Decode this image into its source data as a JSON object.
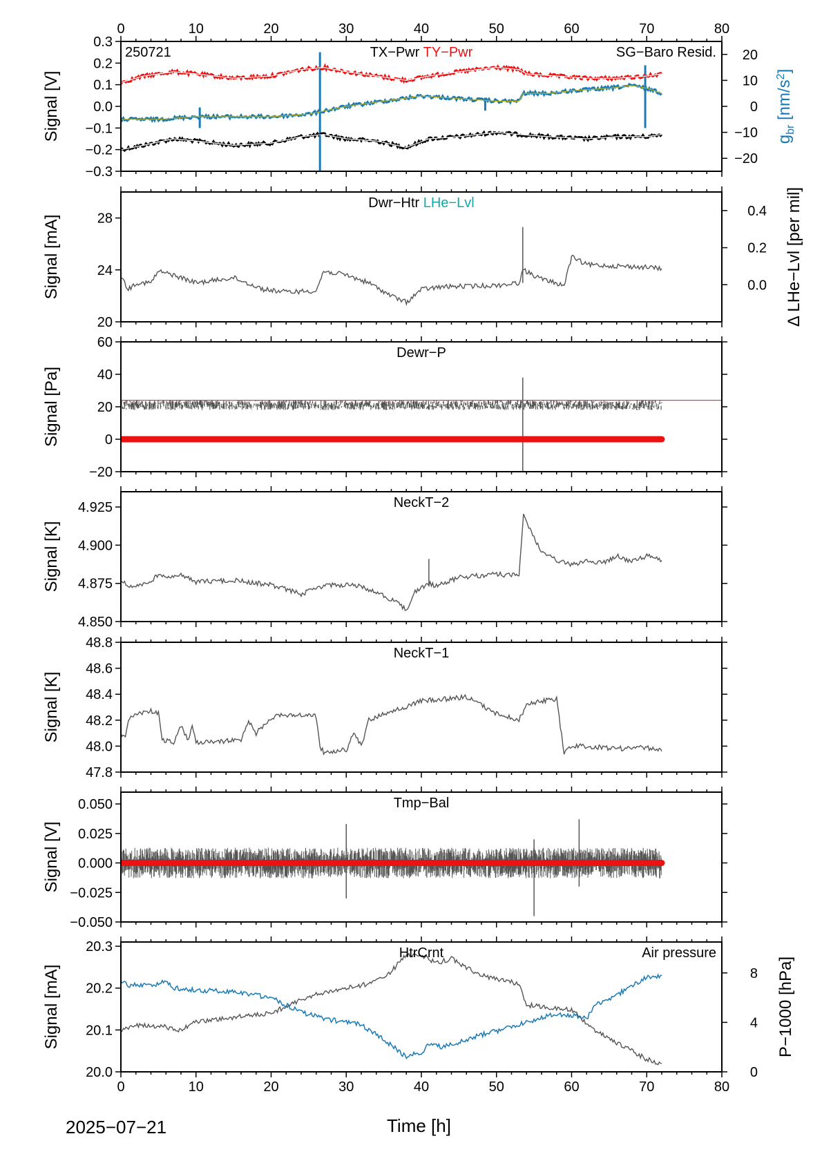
{
  "colors": {
    "black": "#000000",
    "gray": "#555555",
    "red": "#ee1111",
    "blue": "#1a7ab5",
    "teal": "#16a8a8",
    "olive": "#b5b52a"
  },
  "footer": {
    "date": "2025−07−21",
    "xlabel": "Time [h]"
  },
  "chart_data": [
    {
      "type": "line",
      "id": "pwr",
      "xlim": [
        0,
        80
      ],
      "xticks": [
        0,
        10,
        20,
        30,
        40,
        50,
        60,
        70,
        80
      ],
      "ylim": [
        -0.3,
        0.3
      ],
      "yticks": [
        -0.3,
        -0.2,
        -0.1,
        0.0,
        0.1,
        0.2,
        0.3
      ],
      "ytick_labels": [
        "−0.3",
        "−0.2",
        "−0.1",
        "0.0",
        "0.1",
        "0.2",
        "0.3"
      ],
      "ylabel": "Signal [V]",
      "top_xtick_labels": [
        "0",
        "10",
        "20",
        "30",
        "40",
        "50",
        "60",
        "70",
        "80"
      ],
      "annotation": "250721",
      "title_parts": [
        {
          "text": "TX−Pwr",
          "color": "black"
        },
        {
          "text": "TY−Pwr",
          "color": "red"
        }
      ],
      "right_legend": "SG−Baro Resid.",
      "right_axis": {
        "ylim": [
          -25,
          25
        ],
        "yticks": [
          -20,
          -10,
          0,
          10,
          20
        ],
        "ytick_labels": [
          "−20",
          "−10",
          "0",
          "10",
          "20"
        ],
        "label_main": "g",
        "label_sub": "br",
        "label_rest": " [nm/s",
        "label_sup": "2",
        "label_end": "]"
      },
      "series": [
        {
          "name": "TX−Pwr",
          "color": "black",
          "x": [
            0,
            3,
            7,
            10,
            15,
            20,
            24,
            27,
            30,
            34,
            38,
            41,
            45,
            50,
            53,
            57,
            62,
            66,
            70,
            72
          ],
          "y": [
            -0.2,
            -0.18,
            -0.15,
            -0.16,
            -0.18,
            -0.17,
            -0.14,
            -0.13,
            -0.15,
            -0.16,
            -0.19,
            -0.15,
            -0.14,
            -0.12,
            -0.13,
            -0.14,
            -0.15,
            -0.14,
            -0.14,
            -0.13
          ]
        },
        {
          "name": "TY−Pwr",
          "color": "red",
          "x": [
            0,
            3,
            7,
            10,
            15,
            20,
            24,
            27,
            30,
            34,
            38,
            41,
            45,
            50,
            53,
            54,
            58,
            62,
            66,
            70,
            72
          ],
          "y": [
            0.11,
            0.14,
            0.16,
            0.15,
            0.13,
            0.14,
            0.17,
            0.18,
            0.16,
            0.14,
            0.12,
            0.14,
            0.16,
            0.18,
            0.17,
            0.15,
            0.14,
            0.13,
            0.13,
            0.14,
            0.15
          ]
        },
        {
          "name": "SG−Baro Resid.",
          "color": "blue",
          "axis": "right",
          "x": [
            0,
            5,
            10,
            15,
            20,
            25,
            30,
            35,
            40,
            45,
            50,
            53,
            53.5,
            57,
            60,
            65,
            68,
            70,
            72
          ],
          "y": [
            -5,
            -5,
            -4,
            -4,
            -4,
            -3,
            0,
            2,
            4,
            3,
            2,
            2,
            5,
            5,
            6,
            7,
            8,
            7,
            5
          ]
        }
      ],
      "spikes": [
        {
          "x": 26.5,
          "ymin": -0.3,
          "ymax": 0.25
        },
        {
          "x": 10.5,
          "ymin": -0.1,
          "ymax": -0.005
        },
        {
          "x": 48.5,
          "ymin": -0.02,
          "ymax": 0.04
        },
        {
          "x": 69.8,
          "ymin": -0.1,
          "ymax": 0.19
        }
      ]
    },
    {
      "type": "line",
      "id": "dwr",
      "xlim": [
        0,
        80
      ],
      "ylim": [
        20,
        30
      ],
      "yticks": [
        20,
        24,
        28
      ],
      "ytick_labels": [
        "20",
        "24",
        "28"
      ],
      "ylabel": "Signal [mA]",
      "title_parts": [
        {
          "text": "Dwr−Htr",
          "color": "black"
        },
        {
          "text": "LHe−Lvl",
          "color": "teal"
        }
      ],
      "right_axis": {
        "ylim": [
          -0.2,
          0.5
        ],
        "yticks": [
          0.0,
          0.2,
          0.4
        ],
        "ytick_labels": [
          "0.0",
          "0.2",
          "0.4"
        ],
        "label": "Δ LHe−Lvl [per mil]"
      },
      "series": [
        {
          "name": "Dwr−Htr",
          "color": "gray",
          "x": [
            0,
            1,
            2,
            4,
            5,
            7,
            10,
            15,
            19,
            22,
            26,
            27,
            30,
            33,
            36,
            38,
            40,
            43,
            50,
            53,
            53.5,
            56,
            59,
            60,
            62,
            66,
            70,
            72
          ],
          "y": [
            23.5,
            22.5,
            23.0,
            23.0,
            23.9,
            23.6,
            23.0,
            23.4,
            22.5,
            22.3,
            22.4,
            23.9,
            23.6,
            23.0,
            22.0,
            21.5,
            22.5,
            22.7,
            22.8,
            23.0,
            24.0,
            23.3,
            22.8,
            25.0,
            24.4,
            24.3,
            24.2,
            24.1
          ]
        }
      ],
      "spikes": [
        {
          "x": 53.5,
          "ymin": 23.0,
          "ymax": 27.3
        }
      ]
    },
    {
      "type": "line",
      "id": "dewr",
      "xlim": [
        0,
        80
      ],
      "ylim": [
        -20,
        60
      ],
      "yticks": [
        -20,
        0,
        20,
        40,
        60
      ],
      "ytick_labels": [
        "−20",
        "0",
        "20",
        "40",
        "60"
      ],
      "ylabel": "Signal [Pa]",
      "title_parts": [
        {
          "text": "Dewr−P",
          "color": "black"
        }
      ],
      "reference_line": 24,
      "zero_band": {
        "x0": 0,
        "x1": 72,
        "y": 0
      },
      "series": [
        {
          "name": "Dewr−P",
          "color": "gray",
          "x": [
            0,
            72
          ],
          "y": [
            21,
            21
          ]
        }
      ],
      "spikes": [
        {
          "x": 53.5,
          "ymin": -20,
          "ymax": 38
        }
      ]
    },
    {
      "type": "line",
      "id": "neck2",
      "xlim": [
        0,
        80
      ],
      "ylim": [
        4.85,
        4.935
      ],
      "yticks": [
        4.85,
        4.875,
        4.9,
        4.925
      ],
      "ytick_labels": [
        "4.850",
        "4.875",
        "4.900",
        "4.925"
      ],
      "ylabel": "Signal [K]",
      "title_parts": [
        {
          "text": "NeckT−2",
          "color": "black"
        }
      ],
      "series": [
        {
          "name": "NeckT−2",
          "color": "gray",
          "x": [
            0,
            1,
            3,
            5,
            8,
            10,
            15,
            20,
            24,
            26,
            28,
            31,
            33,
            35,
            37,
            38,
            39,
            41,
            42,
            45,
            50,
            53,
            53.6,
            55,
            56,
            58,
            60,
            62,
            64,
            66,
            68,
            70,
            72
          ],
          "y": [
            4.877,
            4.873,
            4.874,
            4.88,
            4.88,
            4.876,
            4.877,
            4.874,
            4.868,
            4.872,
            4.874,
            4.874,
            4.871,
            4.867,
            4.862,
            4.857,
            4.869,
            4.875,
            4.873,
            4.879,
            4.881,
            4.88,
            4.92,
            4.905,
            4.895,
            4.89,
            4.887,
            4.89,
            4.888,
            4.893,
            4.889,
            4.893,
            4.89
          ]
        }
      ],
      "spikes": [
        {
          "x": 41,
          "ymin": 4.873,
          "ymax": 4.891
        }
      ]
    },
    {
      "type": "line",
      "id": "neck1",
      "xlim": [
        0,
        80
      ],
      "ylim": [
        47.8,
        48.8
      ],
      "yticks": [
        47.8,
        48.0,
        48.2,
        48.4,
        48.6,
        48.8
      ],
      "ytick_labels": [
        "47.8",
        "48.0",
        "48.2",
        "48.4",
        "48.6",
        "48.8"
      ],
      "ylabel": "Signal [K]",
      "title_parts": [
        {
          "text": "NeckT−1",
          "color": "black"
        }
      ],
      "series": [
        {
          "name": "NeckT−1",
          "color": "gray",
          "x": [
            0,
            0.6,
            1,
            2,
            4,
            5,
            5.5,
            7,
            8,
            9,
            9.5,
            10,
            12,
            16,
            17,
            18,
            20,
            22,
            24,
            26,
            26.5,
            27,
            29,
            30,
            31,
            32,
            33,
            35,
            38,
            40,
            43,
            46,
            50,
            53,
            54,
            56,
            58,
            59,
            60,
            62,
            66,
            70,
            72
          ],
          "y": [
            48.1,
            48.06,
            48.2,
            48.25,
            48.27,
            48.25,
            48.05,
            48.03,
            48.15,
            48.05,
            48.15,
            48.03,
            48.03,
            48.05,
            48.2,
            48.1,
            48.22,
            48.24,
            48.24,
            48.23,
            48.0,
            47.95,
            47.97,
            47.97,
            48.1,
            48.0,
            48.2,
            48.25,
            48.3,
            48.35,
            48.36,
            48.38,
            48.25,
            48.2,
            48.32,
            48.35,
            48.36,
            47.95,
            48.0,
            48.0,
            47.98,
            47.99,
            47.96
          ]
        }
      ]
    },
    {
      "type": "line",
      "id": "tmp",
      "xlim": [
        0,
        80
      ],
      "ylim": [
        -0.05,
        0.06
      ],
      "yticks": [
        -0.05,
        -0.025,
        0.0,
        0.025,
        0.05
      ],
      "ytick_labels": [
        "−0.050",
        "−0.025",
        "0.000",
        "0.025",
        "0.050"
      ],
      "ylabel": "Signal [V]",
      "title_parts": [
        {
          "text": "Tmp−Bal",
          "color": "black"
        }
      ],
      "noise_band": {
        "x0": 0,
        "x1": 72,
        "lo": -0.013,
        "hi": 0.013
      },
      "zero_band": {
        "x0": 0,
        "x1": 72,
        "y": 0
      },
      "series": [],
      "spikes": [
        {
          "x": 55,
          "ymin": -0.045,
          "ymax": 0.02
        },
        {
          "x": 30,
          "ymin": -0.03,
          "ymax": 0.033
        },
        {
          "x": 61,
          "ymin": -0.02,
          "ymax": 0.037
        }
      ]
    },
    {
      "type": "line",
      "id": "htr",
      "xlim": [
        0,
        80
      ],
      "ylim": [
        20.0,
        20.31
      ],
      "yticks": [
        20.0,
        20.1,
        20.2,
        20.3
      ],
      "ytick_labels": [
        "20.0",
        "20.1",
        "20.2",
        "20.3"
      ],
      "ylabel": "Signal [mA]",
      "bottom_xtick_labels": [
        "0",
        "10",
        "20",
        "30",
        "40",
        "50",
        "60",
        "70",
        "80"
      ],
      "title_parts": [
        {
          "text": "HtrCrnt",
          "color": "black"
        }
      ],
      "right_legend": "Air pressure",
      "right_axis": {
        "ylim": [
          0,
          10.5
        ],
        "yticks": [
          0,
          4,
          8
        ],
        "ytick_labels": [
          "0",
          "4",
          "8"
        ],
        "label": "P−1000 [hPa]"
      },
      "series": [
        {
          "name": "HtrCrnt",
          "color": "gray",
          "x": [
            0,
            2,
            5,
            8,
            10,
            15,
            20,
            25,
            30,
            33,
            36,
            38,
            40,
            42,
            44,
            48,
            53,
            54,
            58,
            60,
            63,
            66,
            70,
            72
          ],
          "y": [
            20.1,
            20.11,
            20.11,
            20.1,
            20.12,
            20.13,
            20.14,
            20.18,
            20.2,
            20.21,
            20.24,
            20.28,
            20.28,
            20.26,
            20.27,
            20.23,
            20.21,
            20.16,
            20.15,
            20.15,
            20.1,
            20.07,
            20.03,
            20.02
          ]
        },
        {
          "name": "Air pressure",
          "color": "blue",
          "axis": "right",
          "x": [
            0,
            1,
            4,
            6,
            7,
            10,
            15,
            20,
            24,
            28,
            32,
            35,
            38,
            40,
            41,
            43,
            45,
            48,
            50,
            54,
            57,
            60,
            62,
            63,
            66,
            68,
            70,
            72
          ],
          "y": [
            7.4,
            7.0,
            7.0,
            7.3,
            6.8,
            6.6,
            6.5,
            6.0,
            4.8,
            4.2,
            3.8,
            2.6,
            1.2,
            1.6,
            2.2,
            2.0,
            2.4,
            3.0,
            3.3,
            4.0,
            4.6,
            4.6,
            4.3,
            5.4,
            6.2,
            7.0,
            7.6,
            7.8
          ]
        }
      ]
    }
  ]
}
